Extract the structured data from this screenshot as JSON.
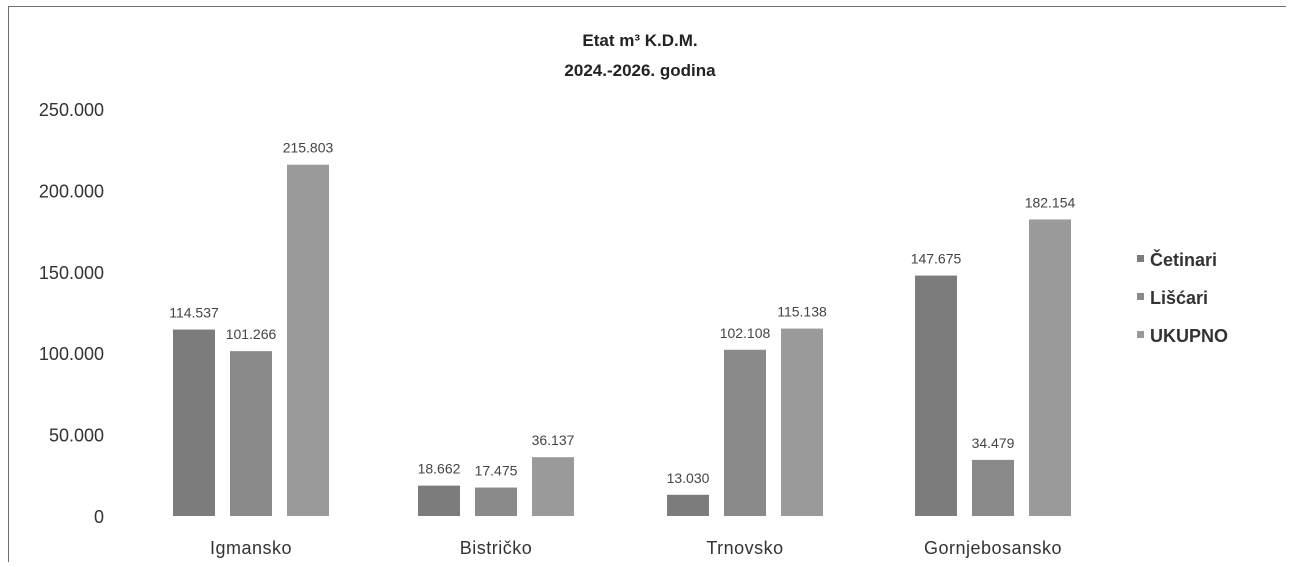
{
  "chart_data": {
    "type": "bar",
    "title_line1": "Etat m³ K.D.M.",
    "title_line2": "2024.-2026. godina",
    "categories": [
      "Igmansko",
      "Bistričko",
      "Trnovsko",
      "Gornjebosansko"
    ],
    "series": [
      {
        "name": "Četinari",
        "values": [
          114537,
          18662,
          13030,
          147675
        ],
        "labels": [
          "114.537",
          "18.662",
          "13.030",
          "147.675"
        ],
        "color": "#7c7c7c"
      },
      {
        "name": "Lišćari",
        "values": [
          101266,
          17475,
          102108,
          34479
        ],
        "labels": [
          "101.266",
          "17.475",
          "102.108",
          "34.479"
        ],
        "color": "#8a8a8a"
      },
      {
        "name": "UKUPNO",
        "values": [
          215803,
          36137,
          115138,
          182154
        ],
        "labels": [
          "215.803",
          "36.137",
          "115.138",
          "182.154"
        ],
        "color": "#9a9a9a"
      }
    ],
    "ylim": [
      0,
      250000
    ],
    "yticks": [
      0,
      50000,
      100000,
      150000,
      200000,
      250000
    ],
    "ytick_labels": [
      "0",
      "50.000",
      "100.000",
      "150.000",
      "200.000",
      "250.000"
    ],
    "grid": false,
    "legend_position": "right"
  }
}
